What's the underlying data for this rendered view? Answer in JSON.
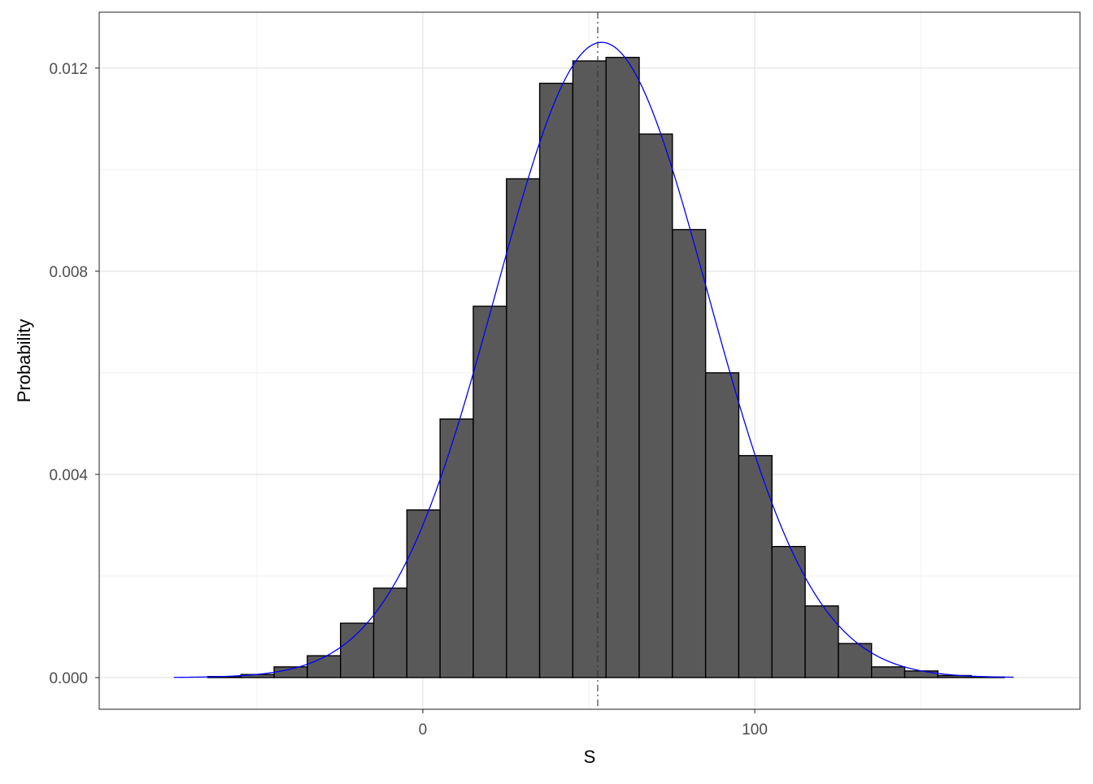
{
  "chart_data": {
    "type": "bar",
    "subtype": "histogram with normal density overlay",
    "xlabel": "S",
    "ylabel": "Probability",
    "xlim": [
      -97.5,
      198
    ],
    "ylim": [
      -0.000624,
      0.0131
    ],
    "x_ticks": [
      0,
      100
    ],
    "x_tick_labels": [
      "0",
      "100"
    ],
    "y_ticks": [
      0,
      0.004,
      0.008,
      0.012
    ],
    "y_tick_labels": [
      "0.000",
      "0.004",
      "0.008",
      "0.012"
    ],
    "grid": true,
    "bin_start": -84.8,
    "bin_width": 10,
    "values": [
      0,
      0,
      2e-05,
      6e-05,
      0.00021,
      0.00043,
      0.00107,
      0.00176,
      0.0033,
      0.00509,
      0.00731,
      0.00982,
      0.0117,
      0.01214,
      0.01221,
      0.0107,
      0.00882,
      0.006,
      0.00437,
      0.00258,
      0.00141,
      0.00067,
      0.00021,
      0.00013,
      4e-05,
      1e-05,
      0
    ],
    "bar_fill": "#595959",
    "bar_stroke": "#000000",
    "density_curve": {
      "distribution": "normal",
      "mean": 53.9,
      "sd": 31.9,
      "x_range": [
        -75,
        178
      ],
      "color": "#0000ff"
    },
    "reference_line": {
      "x": 52.7,
      "style": "dotdash",
      "color": "#333333"
    }
  }
}
